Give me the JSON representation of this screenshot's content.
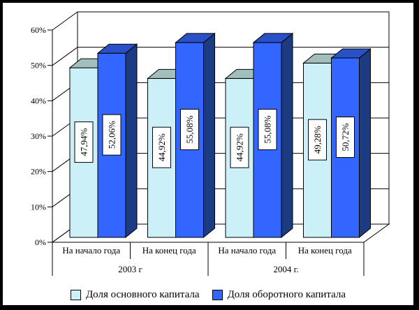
{
  "window": {
    "frame_color": "#000000",
    "background": "#ffffff"
  },
  "chart_data": {
    "type": "bar",
    "view": "3d-clustered-column",
    "title": "",
    "xlabel": "",
    "ylabel": "",
    "categories": [
      "На начало года",
      "На конец года",
      "На начало года",
      "На конец года"
    ],
    "category_groups": [
      {
        "label": "2003 г",
        "span": 2
      },
      {
        "label": "2004 г.",
        "span": 2
      }
    ],
    "series": [
      {
        "name": "Доля основного капитала",
        "color": "#CBF0F8",
        "top_color": "#A0BFBD",
        "side_color": "#6E8F96",
        "values": [
          47.94,
          44.92,
          44.92,
          49.28
        ],
        "value_labels": [
          "47,94%",
          "44,92%",
          "44,92%",
          "49,28%"
        ]
      },
      {
        "name": "Доля оборотного капитала",
        "color": "#3366FF",
        "top_color": "#2850C7",
        "side_color": "#1C3B80",
        "values": [
          52.06,
          55.08,
          55.08,
          50.72
        ],
        "value_labels": [
          "52,06%",
          "55,08%",
          "55,08%",
          "50,72%"
        ]
      }
    ],
    "ylim": [
      0,
      60
    ],
    "ytick_step": 10,
    "ytick_labels": [
      "0%",
      "10%",
      "20%",
      "30%",
      "40%",
      "50%",
      "60%"
    ],
    "grid": true,
    "legend_position": "bottom",
    "data_label_style": "boxed-vertical",
    "line_color": "#000000",
    "text_color": "#000000"
  }
}
